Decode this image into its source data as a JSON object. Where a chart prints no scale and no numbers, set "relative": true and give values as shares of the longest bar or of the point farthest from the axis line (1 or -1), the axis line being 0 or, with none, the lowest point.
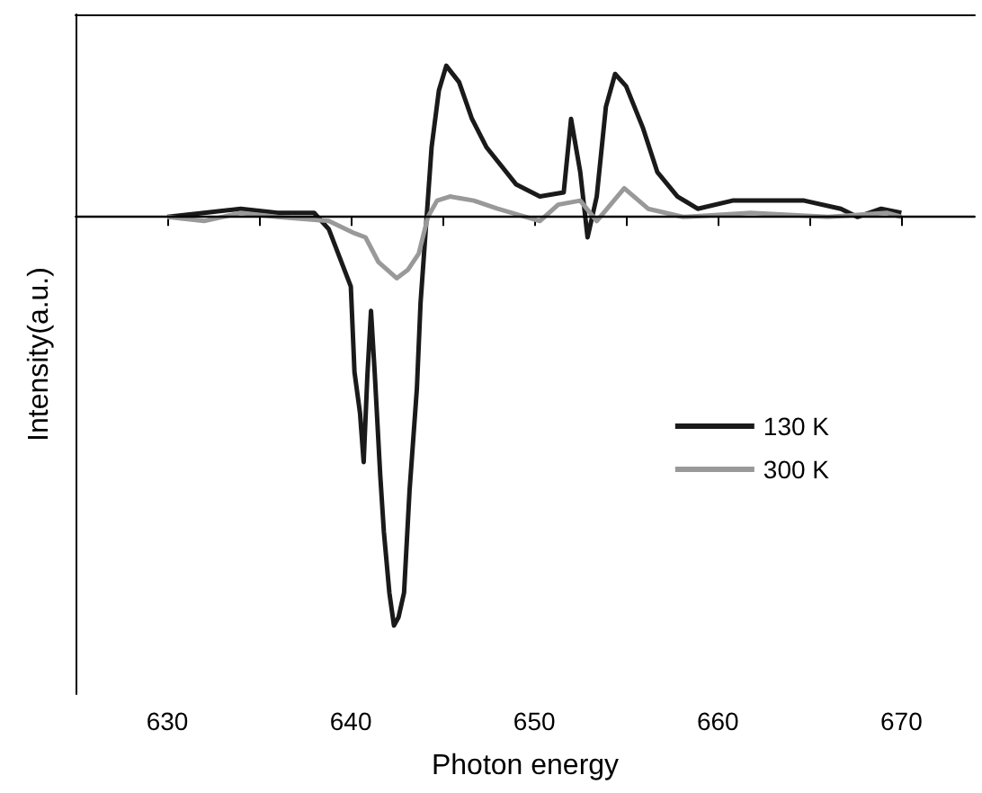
{
  "chart_data": {
    "type": "line",
    "xlabel": "Photon energy",
    "ylabel": "Intensity(a.u.)",
    "relative": true,
    "xlim": [
      625,
      674
    ],
    "xticks": [
      {
        "value": 625,
        "label": null
      },
      630,
      {
        "value": 635,
        "label": null
      },
      640,
      {
        "value": 645,
        "label": null
      },
      650,
      {
        "value": 655,
        "label": null
      },
      660,
      {
        "value": 665,
        "label": null
      },
      670
    ],
    "legend": "right",
    "grid": false,
    "marker": "none",
    "line_style": "solid",
    "ref_lines": [
      {
        "axis": "y",
        "value": 0,
        "color": "#000000"
      }
    ],
    "series": [
      {
        "name": "130 K",
        "color": "#1a1a1a",
        "x": [
          630,
          632,
          634,
          636,
          638,
          638.8,
          640.0,
          640.2,
          640.5,
          640.7,
          640.9,
          641.1,
          641.3,
          641.6,
          641.8,
          642.1,
          642.35,
          642.6,
          642.9,
          643.2,
          643.6,
          643.8,
          644.1,
          644.4,
          644.8,
          645.2,
          645.9,
          646.6,
          647.4,
          649.0,
          650.3,
          651.6,
          652.0,
          652.5,
          652.9,
          653.4,
          653.9,
          654.4,
          655.0,
          655.9,
          656.7,
          657.8,
          658.9,
          660.8,
          662.7,
          664.7,
          666.7,
          667.6,
          668.9,
          670
        ],
        "values": [
          0,
          0.01,
          0.02,
          0.01,
          0.01,
          -0.03,
          -0.17,
          -0.38,
          -0.48,
          -0.6,
          -0.39,
          -0.23,
          -0.38,
          -0.63,
          -0.77,
          -0.92,
          -1,
          -0.98,
          -0.92,
          -0.67,
          -0.42,
          -0.21,
          -0.02,
          0.17,
          0.31,
          0.37,
          0.33,
          0.24,
          0.17,
          0.08,
          0.05,
          0.06,
          0.24,
          0.11,
          -0.05,
          0.05,
          0.27,
          0.35,
          0.32,
          0.22,
          0.11,
          0.05,
          0.02,
          0.04,
          0.04,
          0.04,
          0.02,
          0,
          0.02,
          0.01
        ]
      },
      {
        "name": "300 K",
        "color": "#999999",
        "x": [
          630,
          632,
          634,
          636,
          638.8,
          640.2,
          640.8,
          641.5,
          642.5,
          643.1,
          643.7,
          644.2,
          644.7,
          645.4,
          646.7,
          648.0,
          650.3,
          651.3,
          652.5,
          653.4,
          654.9,
          656.2,
          658.1,
          661.8,
          666.0,
          669.2,
          670
        ],
        "values": [
          0,
          -0.01,
          0.01,
          0,
          -0.01,
          -0.04,
          -0.05,
          -0.11,
          -0.15,
          -0.13,
          -0.09,
          0,
          0.04,
          0.05,
          0.04,
          0.02,
          -0.01,
          0.03,
          0.04,
          -0.01,
          0.07,
          0.02,
          0,
          0.01,
          0,
          0.01,
          0
        ]
      }
    ]
  }
}
